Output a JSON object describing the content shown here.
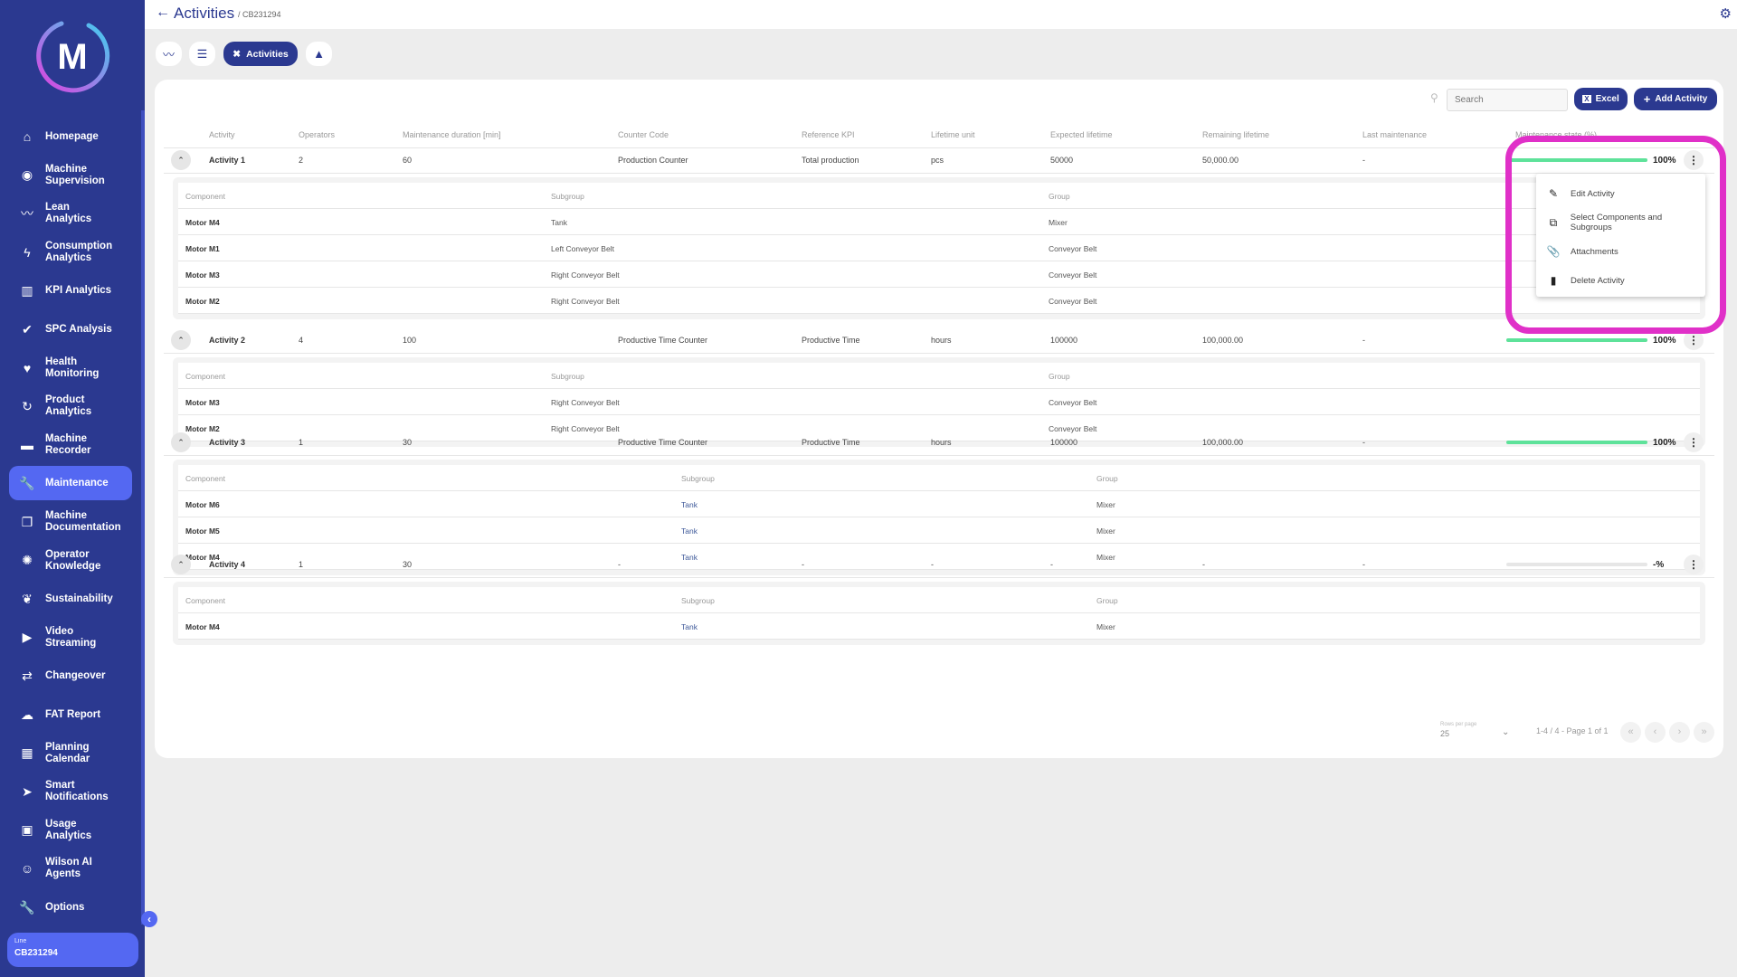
{
  "sidebar": {
    "logo_letter": "M",
    "items": [
      {
        "label": "Homepage",
        "icon": "home-icon",
        "glyph": "⌂"
      },
      {
        "label": "Machine Supervision",
        "icon": "eye-icon",
        "glyph": "◉"
      },
      {
        "label": "Lean Analytics",
        "icon": "trend-icon",
        "glyph": "〰"
      },
      {
        "label": "Consumption Analytics",
        "icon": "bolt-icon",
        "glyph": "ϟ"
      },
      {
        "label": "KPI Analytics",
        "icon": "bar-chart-icon",
        "glyph": "▥"
      },
      {
        "label": "SPC Analysis",
        "icon": "double-check-icon",
        "glyph": "✔"
      },
      {
        "label": "Health Monitoring",
        "icon": "heart-pulse-icon",
        "glyph": "♥"
      },
      {
        "label": "Product Analytics",
        "icon": "cycle-icon",
        "glyph": "↻"
      },
      {
        "label": "Machine Recorder",
        "icon": "recorder-icon",
        "glyph": "▬"
      },
      {
        "label": "Maintenance",
        "icon": "wrench-icon",
        "glyph": "🔧",
        "active": true
      },
      {
        "label": "Machine Documentation",
        "icon": "documents-icon",
        "glyph": "❐"
      },
      {
        "label": "Operator Knowledge",
        "icon": "brain-icon",
        "glyph": "✺"
      },
      {
        "label": "Sustainability",
        "icon": "leaf-icon",
        "glyph": "❦"
      },
      {
        "label": "Video Streaming",
        "icon": "play-icon",
        "glyph": "▶"
      },
      {
        "label": "Changeover",
        "icon": "swap-icon",
        "glyph": "⇄"
      },
      {
        "label": "FAT Report",
        "icon": "cloud-icon",
        "glyph": "☁"
      },
      {
        "label": "Planning Calendar",
        "icon": "calendar-icon",
        "glyph": "▦"
      },
      {
        "label": "Smart Notifications",
        "icon": "send-icon",
        "glyph": "➤"
      },
      {
        "label": "Usage Analytics",
        "icon": "user-card-icon",
        "glyph": "▣"
      },
      {
        "label": "Wilson AI Agents",
        "icon": "robot-icon",
        "glyph": "☺"
      },
      {
        "label": "Options",
        "icon": "wrench-icon",
        "glyph": "🔧"
      }
    ],
    "line_label": "Line",
    "line_value": "CB231294"
  },
  "header": {
    "title": "Activities",
    "breadcrumb": "/ CB231294"
  },
  "toolbar": {
    "active_tab": "Activities"
  },
  "actions": {
    "search_placeholder": "Search",
    "excel": "Excel",
    "add": "Add Activity"
  },
  "table": {
    "columns": [
      "Activity",
      "Operators",
      "Maintenance duration [min]",
      "Counter Code",
      "Reference KPI",
      "Lifetime unit",
      "Expected lifetime",
      "Remaining lifetime",
      "Last maintenance",
      "Maintenance state (%)"
    ],
    "sub_columns": [
      "Component",
      "Subgroup",
      "Group"
    ],
    "rows": [
      {
        "activity": "Activity 1",
        "operators": "2",
        "duration": "60",
        "counter": "Production Counter",
        "kpi": "Total production",
        "unit": "pcs",
        "expected": "50000",
        "remaining": "50,000.00",
        "last": "-",
        "state": 100,
        "state_label": "100%",
        "components": [
          [
            "Motor M4",
            "Tank",
            "Mixer"
          ],
          [
            "Motor M1",
            "Left Conveyor Belt",
            "Conveyor Belt"
          ],
          [
            "Motor M3",
            "Right Conveyor Belt",
            "Conveyor Belt"
          ],
          [
            "Motor M2",
            "Right Conveyor Belt",
            "Conveyor Belt"
          ]
        ]
      },
      {
        "activity": "Activity 2",
        "operators": "4",
        "duration": "100",
        "counter": "Productive Time Counter",
        "kpi": "Productive Time",
        "unit": "hours",
        "expected": "100000",
        "remaining": "100,000.00",
        "last": "-",
        "state": 100,
        "state_label": "100%",
        "components": [
          [
            "Motor M3",
            "Right Conveyor Belt",
            "Conveyor Belt"
          ],
          [
            "Motor M2",
            "Right Conveyor Belt",
            "Conveyor Belt"
          ]
        ]
      },
      {
        "activity": "Activity 3",
        "operators": "1",
        "duration": "30",
        "counter": "Productive Time Counter",
        "kpi": "Productive Time",
        "unit": "hours",
        "expected": "100000",
        "remaining": "100,000.00",
        "last": "-",
        "state": 100,
        "state_label": "100%",
        "components": [
          [
            "Motor M6",
            "Tank",
            "Mixer"
          ],
          [
            "Motor M5",
            "Tank",
            "Mixer"
          ],
          [
            "Motor M4",
            "Tank",
            "Mixer"
          ]
        ]
      },
      {
        "activity": "Activity 4",
        "operators": "1",
        "duration": "30",
        "counter": "-",
        "kpi": "-",
        "unit": "-",
        "expected": "-",
        "remaining": "-",
        "last": "-",
        "state": 0,
        "state_label": "-%",
        "components": [
          [
            "Motor M4",
            "Tank",
            "Mixer"
          ]
        ]
      }
    ]
  },
  "pagination": {
    "rows_per_page_label": "Rows per page",
    "rows_per_page": "25",
    "info": "1-4 / 4 - Page 1 of 1"
  },
  "context_menu": {
    "items": [
      {
        "label": "Edit Activity",
        "icon": "pencil-icon",
        "glyph": "✎"
      },
      {
        "label": "Select Components and Subgroups",
        "icon": "open-external-icon",
        "glyph": "⧉"
      },
      {
        "label": "Attachments",
        "icon": "paperclip-icon",
        "glyph": "📎"
      },
      {
        "label": "Delete Activity",
        "icon": "trash-icon",
        "glyph": "▮"
      }
    ]
  },
  "colors": {
    "primary": "#2b3990",
    "accent": "#5468f2",
    "progress": "#5ee29a",
    "highlight": "#e030c8"
  }
}
